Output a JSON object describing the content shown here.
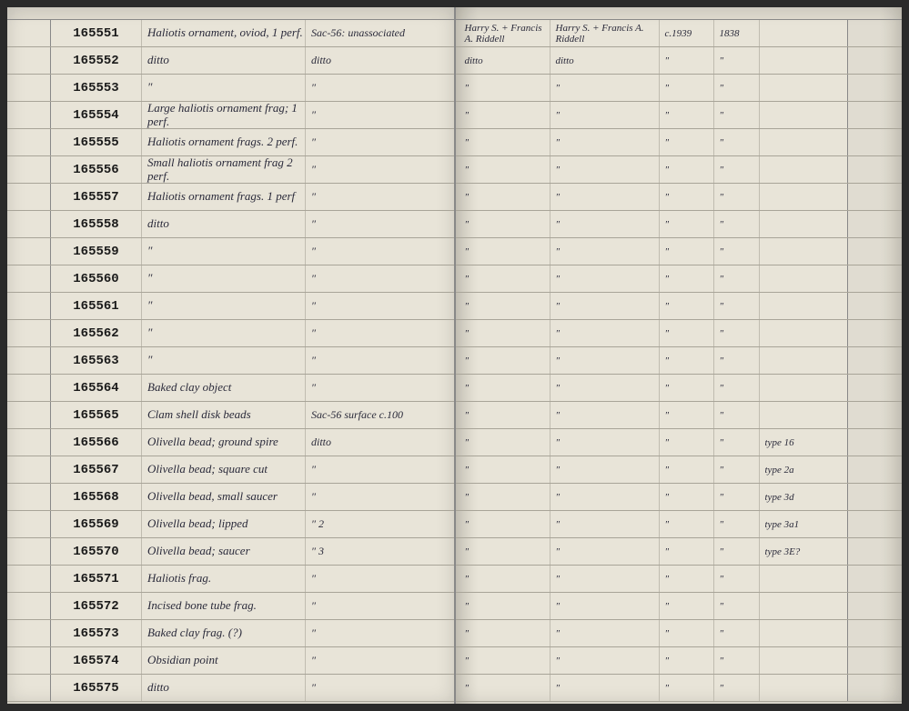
{
  "page_background": "#e8e4d8",
  "rule_color": "#a8a498",
  "ink_color": "#2a2a3a",
  "left_page": {
    "rows": [
      {
        "num": "165551",
        "desc": "Haliotis ornament, oviod, 1 perf.",
        "loc": "Sac-56: unassociated"
      },
      {
        "num": "165552",
        "desc": "ditto",
        "loc": "ditto"
      },
      {
        "num": "165553",
        "desc": "″",
        "loc": "″"
      },
      {
        "num": "165554",
        "desc": "Large haliotis ornament frag; 1 perf.",
        "loc": "″"
      },
      {
        "num": "165555",
        "desc": "Haliotis ornament frags. 2 perf.",
        "loc": "″"
      },
      {
        "num": "165556",
        "desc": "Small haliotis ornament frag 2 perf.",
        "loc": "″"
      },
      {
        "num": "165557",
        "desc": "Haliotis ornament frags. 1 perf",
        "loc": "″"
      },
      {
        "num": "165558",
        "desc": "ditto",
        "loc": "″"
      },
      {
        "num": "165559",
        "desc": "″",
        "loc": "″"
      },
      {
        "num": "165560",
        "desc": "″",
        "loc": "″"
      },
      {
        "num": "165561",
        "desc": "″",
        "loc": "″"
      },
      {
        "num": "165562",
        "desc": "″",
        "loc": "″"
      },
      {
        "num": "165563",
        "desc": "″",
        "loc": "″"
      },
      {
        "num": "165564",
        "desc": "Baked clay object",
        "loc": "″"
      },
      {
        "num": "165565",
        "desc": "Clam shell disk beads",
        "loc": "Sac-56 surface          c.100"
      },
      {
        "num": "165566",
        "desc": "Olivella bead; ground spire",
        "loc": "ditto"
      },
      {
        "num": "165567",
        "desc": "Olivella bead; square cut",
        "loc": "″"
      },
      {
        "num": "165568",
        "desc": "Olivella bead, small saucer",
        "loc": "″"
      },
      {
        "num": "165569",
        "desc": "Olivella bead; lipped",
        "loc": "″                      2"
      },
      {
        "num": "165570",
        "desc": "Olivella bead; saucer",
        "loc": "″                      3"
      },
      {
        "num": "165571",
        "desc": "Haliotis frag.",
        "loc": "″"
      },
      {
        "num": "165572",
        "desc": "Incised bone tube frag.",
        "loc": "″"
      },
      {
        "num": "165573",
        "desc": "Baked clay frag. (?)",
        "loc": "″"
      },
      {
        "num": "165574",
        "desc": "Obsidian point",
        "loc": "″"
      },
      {
        "num": "165575",
        "desc": "ditto",
        "loc": "″"
      }
    ]
  },
  "right_page": {
    "rows": [
      {
        "c1": "Harry S. + Francis A. Riddell",
        "c2": "Harry S. + Francis A. Riddell",
        "c3": "c.1939",
        "c4": "1838",
        "c5": ""
      },
      {
        "c1": "ditto",
        "c2": "ditto",
        "c3": "″",
        "c4": "″",
        "c5": ""
      },
      {
        "c1": "″",
        "c2": "″",
        "c3": "″",
        "c4": "″",
        "c5": ""
      },
      {
        "c1": "″",
        "c2": "″",
        "c3": "″",
        "c4": "″",
        "c5": ""
      },
      {
        "c1": "″",
        "c2": "″",
        "c3": "″",
        "c4": "″",
        "c5": ""
      },
      {
        "c1": "″",
        "c2": "″",
        "c3": "″",
        "c4": "″",
        "c5": ""
      },
      {
        "c1": "″",
        "c2": "″",
        "c3": "″",
        "c4": "″",
        "c5": ""
      },
      {
        "c1": "″",
        "c2": "″",
        "c3": "″",
        "c4": "″",
        "c5": ""
      },
      {
        "c1": "″",
        "c2": "″",
        "c3": "″",
        "c4": "″",
        "c5": ""
      },
      {
        "c1": "″",
        "c2": "″",
        "c3": "″",
        "c4": "″",
        "c5": ""
      },
      {
        "c1": "″",
        "c2": "″",
        "c3": "″",
        "c4": "″",
        "c5": ""
      },
      {
        "c1": "″",
        "c2": "″",
        "c3": "″",
        "c4": "″",
        "c5": ""
      },
      {
        "c1": "″",
        "c2": "″",
        "c3": "″",
        "c4": "″",
        "c5": ""
      },
      {
        "c1": "″",
        "c2": "″",
        "c3": "″",
        "c4": "″",
        "c5": ""
      },
      {
        "c1": "″",
        "c2": "″",
        "c3": "″",
        "c4": "″",
        "c5": ""
      },
      {
        "c1": "″",
        "c2": "″",
        "c3": "″",
        "c4": "″",
        "c5": "type 16"
      },
      {
        "c1": "″",
        "c2": "″",
        "c3": "″",
        "c4": "″",
        "c5": "type 2a"
      },
      {
        "c1": "″",
        "c2": "″",
        "c3": "″",
        "c4": "″",
        "c5": "type 3d"
      },
      {
        "c1": "″",
        "c2": "″",
        "c3": "″",
        "c4": "″",
        "c5": "type 3a1"
      },
      {
        "c1": "″",
        "c2": "″",
        "c3": "″",
        "c4": "″",
        "c5": "type 3E?"
      },
      {
        "c1": "″",
        "c2": "″",
        "c3": "″",
        "c4": "″",
        "c5": ""
      },
      {
        "c1": "″",
        "c2": "″",
        "c3": "″",
        "c4": "″",
        "c5": ""
      },
      {
        "c1": "″",
        "c2": "″",
        "c3": "″",
        "c4": "″",
        "c5": ""
      },
      {
        "c1": "″",
        "c2": "″",
        "c3": "″",
        "c4": "″",
        "c5": ""
      },
      {
        "c1": "″",
        "c2": "″",
        "c3": "″",
        "c4": "″",
        "c5": ""
      }
    ]
  }
}
